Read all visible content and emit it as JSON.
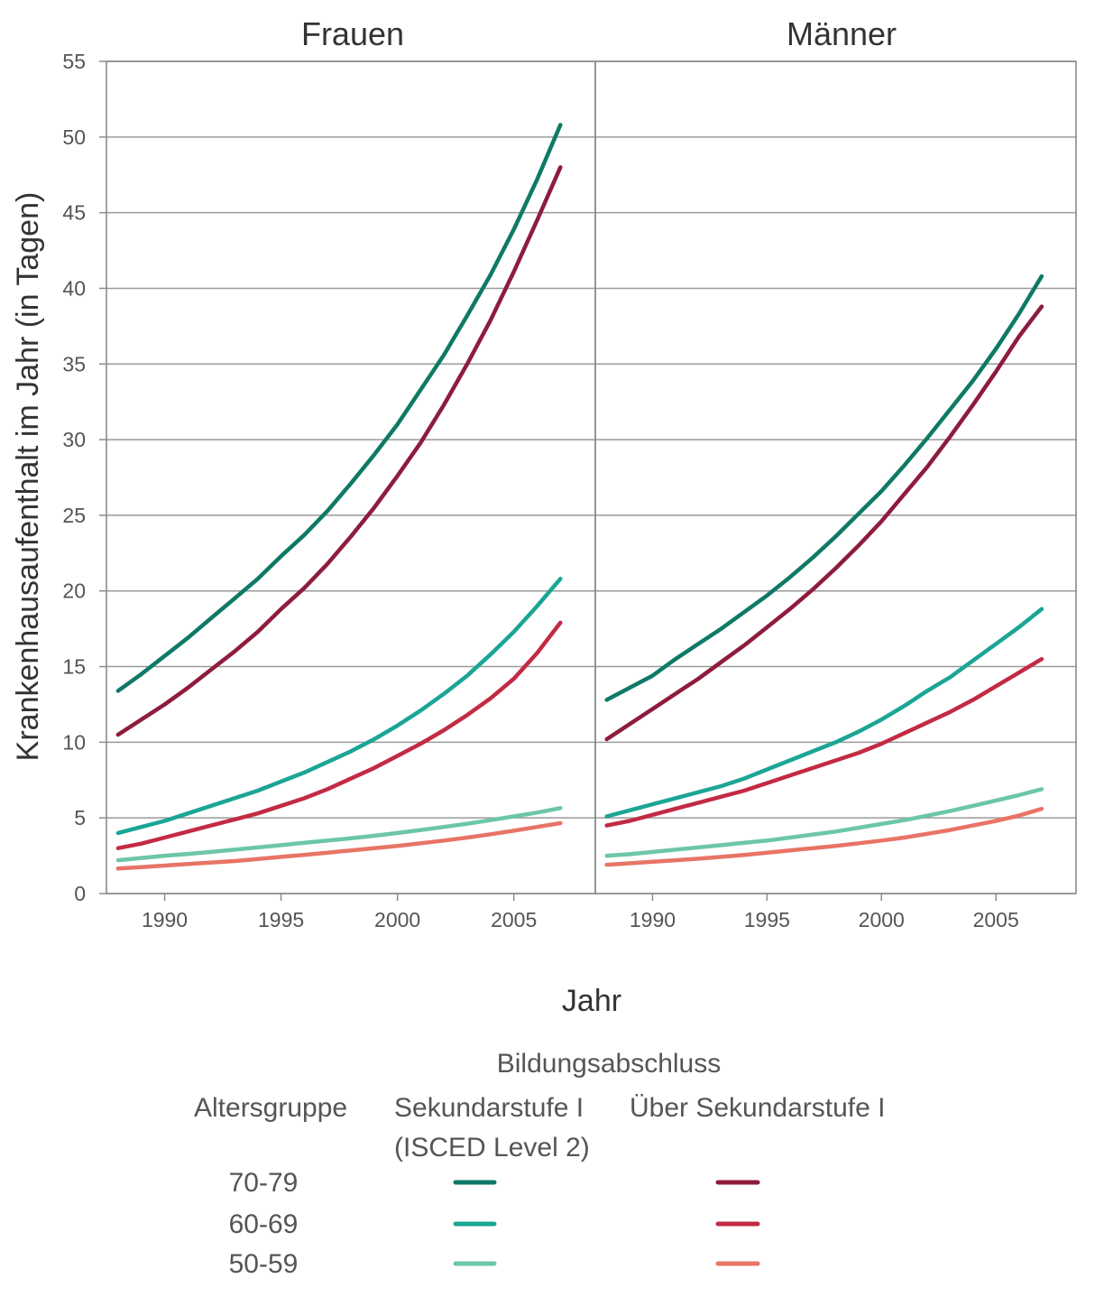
{
  "chart_data": {
    "type": "line",
    "ylabel": "Krankenhausaufenthalt im Jahr (in Tagen)",
    "xlabel": "Jahr",
    "ylim": [
      0,
      55
    ],
    "yticks": [
      "0",
      "5",
      "10",
      "15",
      "20",
      "25",
      "30",
      "35",
      "40",
      "45",
      "50",
      "55"
    ],
    "xticks": [
      "1990",
      "1995",
      "2000",
      "2005"
    ],
    "xlim": [
      1987.5,
      2008.5
    ],
    "grid": true,
    "panels": [
      {
        "title": "Frauen",
        "x": [
          1988,
          1989,
          1990,
          1991,
          1992,
          1993,
          1994,
          1995,
          1996,
          1997,
          1998,
          1999,
          2000,
          2001,
          2002,
          2003,
          2004,
          2005,
          2006,
          2007
        ],
        "series": [
          {
            "key": "a70_low",
            "color": "#0e7a66",
            "values": [
              13.4,
              14.5,
              15.7,
              16.9,
              18.2,
              19.5,
              20.8,
              22.3,
              23.7,
              25.3,
              27.1,
              29.0,
              31.0,
              33.3,
              35.6,
              38.2,
              40.9,
              43.9,
              47.2,
              50.8
            ]
          },
          {
            "key": "a70_high",
            "color": "#8e1c3c",
            "values": [
              10.5,
              11.5,
              12.5,
              13.6,
              14.8,
              16.0,
              17.3,
              18.8,
              20.2,
              21.8,
              23.6,
              25.5,
              27.6,
              29.8,
              32.3,
              35.0,
              37.9,
              41.1,
              44.5,
              48.0
            ]
          },
          {
            "key": "a60_low",
            "color": "#1ba595",
            "values": [
              4.0,
              4.4,
              4.8,
              5.3,
              5.8,
              6.3,
              6.8,
              7.4,
              8.0,
              8.7,
              9.4,
              10.2,
              11.1,
              12.1,
              13.2,
              14.4,
              15.8,
              17.3,
              19.0,
              20.8
            ]
          },
          {
            "key": "a60_high",
            "color": "#c32a44",
            "values": [
              3.0,
              3.3,
              3.7,
              4.1,
              4.5,
              4.9,
              5.3,
              5.8,
              6.3,
              6.9,
              7.6,
              8.3,
              9.1,
              9.9,
              10.8,
              11.8,
              12.9,
              14.2,
              15.9,
              17.9
            ]
          },
          {
            "key": "a50_low",
            "color": "#6cc6a7",
            "values": [
              2.2,
              2.35,
              2.5,
              2.62,
              2.75,
              2.9,
              3.05,
              3.2,
              3.35,
              3.5,
              3.65,
              3.82,
              4.0,
              4.2,
              4.4,
              4.62,
              4.85,
              5.1,
              5.35,
              5.65
            ]
          },
          {
            "key": "a50_high",
            "color": "#e87466",
            "values": [
              1.65,
              1.75,
              1.85,
              1.95,
              2.05,
              2.15,
              2.28,
              2.42,
              2.56,
              2.7,
              2.85,
              3.0,
              3.15,
              3.32,
              3.5,
              3.7,
              3.92,
              4.15,
              4.4,
              4.65
            ]
          }
        ]
      },
      {
        "title": "Männer",
        "x": [
          1988,
          1989,
          1990,
          1991,
          1992,
          1993,
          1994,
          1995,
          1996,
          1997,
          1998,
          1999,
          2000,
          2001,
          2002,
          2003,
          2004,
          2005,
          2006,
          2007
        ],
        "series": [
          {
            "key": "a70_low",
            "color": "#0e7a66",
            "values": [
              12.8,
              13.6,
              14.4,
              15.5,
              16.5,
              17.5,
              18.6,
              19.7,
              20.9,
              22.2,
              23.6,
              25.1,
              26.6,
              28.3,
              30.1,
              32.0,
              33.9,
              36.0,
              38.3,
              40.8
            ]
          },
          {
            "key": "a70_high",
            "color": "#8e1c3c",
            "values": [
              10.2,
              11.2,
              12.2,
              13.2,
              14.2,
              15.3,
              16.4,
              17.6,
              18.8,
              20.1,
              21.5,
              23.0,
              24.6,
              26.4,
              28.2,
              30.2,
              32.3,
              34.5,
              36.8,
              38.8
            ]
          },
          {
            "key": "a60_low",
            "color": "#1ba595",
            "values": [
              5.1,
              5.5,
              5.9,
              6.3,
              6.7,
              7.1,
              7.6,
              8.2,
              8.8,
              9.4,
              10.0,
              10.7,
              11.5,
              12.4,
              13.4,
              14.3,
              15.4,
              16.5,
              17.6,
              18.8
            ]
          },
          {
            "key": "a60_high",
            "color": "#c32a44",
            "values": [
              4.5,
              4.8,
              5.2,
              5.6,
              6.0,
              6.4,
              6.8,
              7.3,
              7.8,
              8.3,
              8.8,
              9.3,
              9.9,
              10.6,
              11.3,
              12.0,
              12.8,
              13.7,
              14.6,
              15.5
            ]
          },
          {
            "key": "a50_low",
            "color": "#6cc6a7",
            "values": [
              2.5,
              2.6,
              2.75,
              2.9,
              3.05,
              3.2,
              3.35,
              3.5,
              3.7,
              3.9,
              4.1,
              4.35,
              4.6,
              4.85,
              5.15,
              5.45,
              5.8,
              6.15,
              6.5,
              6.9
            ]
          },
          {
            "key": "a50_high",
            "color": "#e87466",
            "values": [
              1.9,
              2.0,
              2.1,
              2.2,
              2.3,
              2.42,
              2.55,
              2.7,
              2.85,
              3.0,
              3.15,
              3.32,
              3.5,
              3.7,
              3.95,
              4.2,
              4.5,
              4.8,
              5.15,
              5.6
            ]
          }
        ]
      }
    ]
  },
  "legend": {
    "title": "Bildungsabschluss",
    "row_header": "Altersgruppe",
    "col1_line1": "Sekundarstufe I",
    "col1_line2": "(ISCED Level 2)",
    "col2": "Über Sekundarstufe I",
    "rows": [
      {
        "label": "70-79",
        "color_low": "#0e7a66",
        "color_high": "#8e1c3c"
      },
      {
        "label": "60-69",
        "color_low": "#1ba595",
        "color_high": "#c32a44"
      },
      {
        "label": "50-59",
        "color_low": "#6cc6a7",
        "color_high": "#e87466"
      }
    ]
  }
}
